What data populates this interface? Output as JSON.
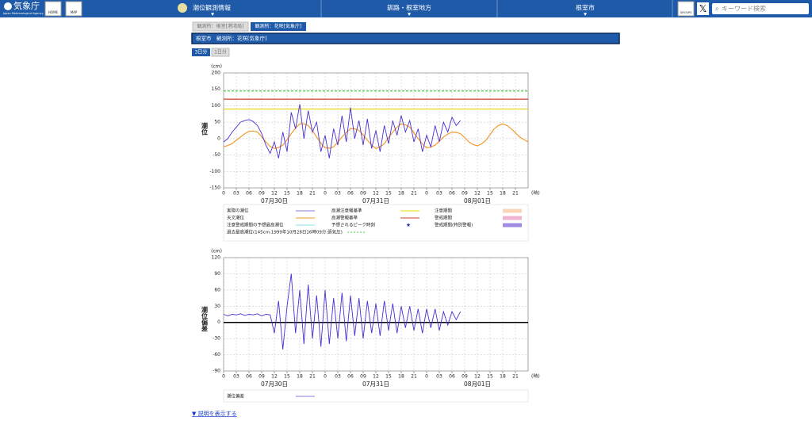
{
  "header": {
    "logo": "気象庁",
    "logo_sub": "Japan Meteorological Agency",
    "home": "HOME",
    "map": "MAP",
    "nav": [
      "潮位観測情報",
      "釧路・根室地方",
      "根室市"
    ],
    "groups": "GROUPS",
    "search_placeholder": "キーワード検索"
  },
  "tabs": [
    "観測所：根室[港湾局]",
    "観測所：花咲[気象庁]"
  ],
  "title_bar": "根室市　観測所：花咲[気象庁]",
  "period_buttons": [
    "3日分",
    "1日分"
  ],
  "footer_link": "▼ 説明を表示する",
  "chart_data": [
    {
      "type": "line",
      "ylabel": "潮位",
      "yunit": "(cm)",
      "xunit": "(時)",
      "xlim": [
        0,
        72
      ],
      "ylim": [
        -150,
        200
      ],
      "yticks": [
        -150,
        -100,
        -50,
        0,
        50,
        100,
        150,
        200
      ],
      "xticks": [
        0,
        {
          "value": 3,
          "label": "03"
        },
        {
          "value": 6,
          "label": "06"
        },
        {
          "value": 9,
          "label": "09"
        },
        12,
        15,
        18,
        21,
        {
          "value": 24,
          "label": "0"
        },
        {
          "value": 27,
          "label": "03"
        },
        {
          "value": 30,
          "label": "06"
        },
        {
          "value": 33,
          "label": "09"
        },
        {
          "value": 36,
          "label": "12"
        },
        {
          "value": 39,
          "label": "15"
        },
        {
          "value": 42,
          "label": "18"
        },
        {
          "value": 45,
          "label": "21"
        },
        {
          "value": 48,
          "label": "0"
        },
        {
          "value": 51,
          "label": "03"
        },
        {
          "value": 54,
          "label": "06"
        },
        {
          "value": 57,
          "label": "09"
        },
        {
          "value": 60,
          "label": "12"
        },
        {
          "value": 63,
          "label": "15"
        },
        {
          "value": 66,
          "label": "18"
        },
        {
          "value": 69,
          "label": "21"
        }
      ],
      "day_labels": [
        {
          "value": 12,
          "label": "07月30日"
        },
        {
          "value": 36,
          "label": "07月31日"
        },
        {
          "value": 60,
          "label": "08月01日"
        }
      ],
      "grid": true,
      "reference_lines": [
        {
          "value": 145,
          "color": "#44cc44",
          "dashed": true
        },
        {
          "value": 120,
          "color": "#c8442c",
          "dashed": false
        },
        {
          "value": 90,
          "color": "#e8d400",
          "dashed": false
        }
      ],
      "x": [
        0,
        1,
        2,
        3,
        4,
        5,
        6,
        7,
        8,
        9,
        10,
        11,
        12,
        13,
        14,
        15,
        16,
        17,
        18,
        19,
        20,
        21,
        22,
        23,
        24,
        25,
        26,
        27,
        28,
        29,
        30,
        31,
        32,
        33,
        34,
        35,
        36,
        37,
        38,
        39,
        40,
        41,
        42,
        43,
        44,
        45,
        46,
        47,
        48,
        49,
        50,
        51,
        52,
        53,
        54,
        55,
        56,
        57,
        58,
        59,
        60,
        61,
        62,
        63,
        64,
        65,
        66,
        67,
        68,
        69,
        70,
        71,
        72
      ],
      "series": [
        {
          "name": "天文潮位",
          "color": "#f39a2e",
          "values": [
            -25,
            -21,
            -15,
            -5,
            5,
            15,
            22,
            23,
            20,
            6,
            -10,
            -24,
            -30,
            -27,
            -20,
            -3,
            15,
            32,
            45,
            45,
            40,
            24,
            5,
            -14,
            -28,
            -29,
            -25,
            -11,
            5,
            19,
            30,
            30,
            25,
            11,
            -5,
            -20,
            -30,
            -25,
            -15,
            3,
            20,
            35,
            45,
            42,
            35,
            18,
            0,
            -16,
            -28,
            -26,
            -20,
            -8,
            5,
            14,
            20,
            19,
            15,
            3,
            -10,
            -18,
            -22,
            -16,
            -5,
            12,
            30,
            40,
            45,
            40,
            30,
            18,
            5,
            -3,
            -10
          ]
        },
        {
          "name": "実際の潮位",
          "color": "#4a2fd0",
          "values": [
            -10,
            0,
            20,
            35,
            50,
            55,
            58,
            52,
            40,
            15,
            -20,
            -45,
            -10,
            -60,
            20,
            -40,
            80,
            30,
            105,
            0,
            85,
            20,
            50,
            -40,
            10,
            -60,
            30,
            -20,
            70,
            -10,
            95,
            0,
            55,
            -20,
            60,
            -30,
            25,
            -40,
            40,
            -15,
            55,
            10,
            70,
            20,
            55,
            -10,
            30,
            -40,
            10,
            -25,
            40,
            -10,
            50,
            20,
            65,
            40,
            55,
            null,
            null,
            null,
            null,
            null,
            null,
            null,
            null,
            null,
            null,
            null,
            null,
            null,
            null,
            null,
            null
          ]
        }
      ],
      "legend_items": [
        {
          "label": "実際の潮位",
          "kind": "line",
          "color": "#8a7ce0"
        },
        {
          "label": "高潮注意報基準",
          "kind": "line",
          "color": "#e8d400"
        },
        {
          "label": "注意期間",
          "kind": "box",
          "color": "#f8d4b8"
        },
        {
          "label": "天文潮位",
          "kind": "line",
          "color": "#f39a2e"
        },
        {
          "label": "高潮警報基準",
          "kind": "line",
          "color": "#c8442c"
        },
        {
          "label": "警戒期間",
          "kind": "box",
          "color": "#f0b4d0"
        },
        {
          "label": "注意警戒期間の予想最高潮位",
          "kind": "line",
          "color": "#8ee0f0"
        },
        {
          "label": "予想されるピーク時刻",
          "kind": "star",
          "color": "#2a2ab0"
        },
        {
          "label": "警戒期間(特別警報)",
          "kind": "box",
          "color": "#a08ce0"
        },
        {
          "label": "過去最高潮位(145cm:1999年10月28日16時09分:張気圧)",
          "kind": "dashed",
          "color": "#44cc44"
        }
      ]
    },
    {
      "type": "line",
      "ylabel": "潮位偏差",
      "yunit": "(cm)",
      "xunit": "(時)",
      "xlim": [
        0,
        72
      ],
      "ylim": [
        -90,
        120
      ],
      "yticks": [
        -90,
        -60,
        -30,
        0,
        30,
        60,
        90,
        120
      ],
      "xticks": [
        0,
        {
          "value": 3,
          "label": "03"
        },
        {
          "value": 6,
          "label": "06"
        },
        {
          "value": 9,
          "label": "09"
        },
        12,
        15,
        18,
        21,
        {
          "value": 24,
          "label": "0"
        },
        {
          "value": 27,
          "label": "03"
        },
        {
          "value": 30,
          "label": "06"
        },
        {
          "value": 33,
          "label": "09"
        },
        {
          "value": 36,
          "label": "12"
        },
        {
          "value": 39,
          "label": "15"
        },
        {
          "value": 42,
          "label": "18"
        },
        {
          "value": 45,
          "label": "21"
        },
        {
          "value": 48,
          "label": "0"
        },
        {
          "value": 51,
          "label": "03"
        },
        {
          "value": 54,
          "label": "06"
        },
        {
          "value": 57,
          "label": "09"
        },
        {
          "value": 60,
          "label": "12"
        },
        {
          "value": 63,
          "label": "15"
        },
        {
          "value": 66,
          "label": "18"
        },
        {
          "value": 69,
          "label": "21"
        }
      ],
      "day_labels": [
        {
          "value": 12,
          "label": "07月30日"
        },
        {
          "value": 36,
          "label": "07月31日"
        },
        {
          "value": 60,
          "label": "08月01日"
        }
      ],
      "grid": true,
      "reference_lines": [
        {
          "value": 0,
          "color": "#000000",
          "dashed": false
        }
      ],
      "x": [
        0,
        1,
        2,
        3,
        4,
        5,
        6,
        7,
        8,
        9,
        10,
        11,
        12,
        13,
        14,
        15,
        16,
        17,
        18,
        19,
        20,
        21,
        22,
        23,
        24,
        25,
        26,
        27,
        28,
        29,
        30,
        31,
        32,
        33,
        34,
        35,
        36,
        37,
        38,
        39,
        40,
        41,
        42,
        43,
        44,
        45,
        46,
        47,
        48,
        49,
        50,
        51,
        52,
        53,
        54,
        55,
        56,
        57,
        58,
        59,
        60,
        61,
        62,
        63,
        64,
        65,
        66,
        67,
        68,
        69,
        70,
        71,
        72
      ],
      "series": [
        {
          "name": "潮位偏差",
          "color": "#4a2fd0",
          "values": [
            15,
            12,
            15,
            14,
            16,
            13,
            15,
            14,
            16,
            12,
            15,
            14,
            -20,
            40,
            -50,
            30,
            90,
            -20,
            60,
            -40,
            70,
            -30,
            50,
            -45,
            60,
            -40,
            45,
            -30,
            55,
            -35,
            50,
            -25,
            45,
            -30,
            40,
            -20,
            35,
            -25,
            40,
            -15,
            35,
            -20,
            30,
            -10,
            30,
            -15,
            25,
            -20,
            25,
            -10,
            25,
            -15,
            20,
            -5,
            20,
            5,
            20,
            null,
            null,
            null,
            null,
            null,
            null,
            null,
            null,
            null,
            null,
            null,
            null,
            null,
            null,
            null,
            null
          ]
        }
      ],
      "legend_items": [
        {
          "label": "潮位偏差",
          "kind": "line",
          "color": "#8a7ce0"
        }
      ]
    }
  ]
}
